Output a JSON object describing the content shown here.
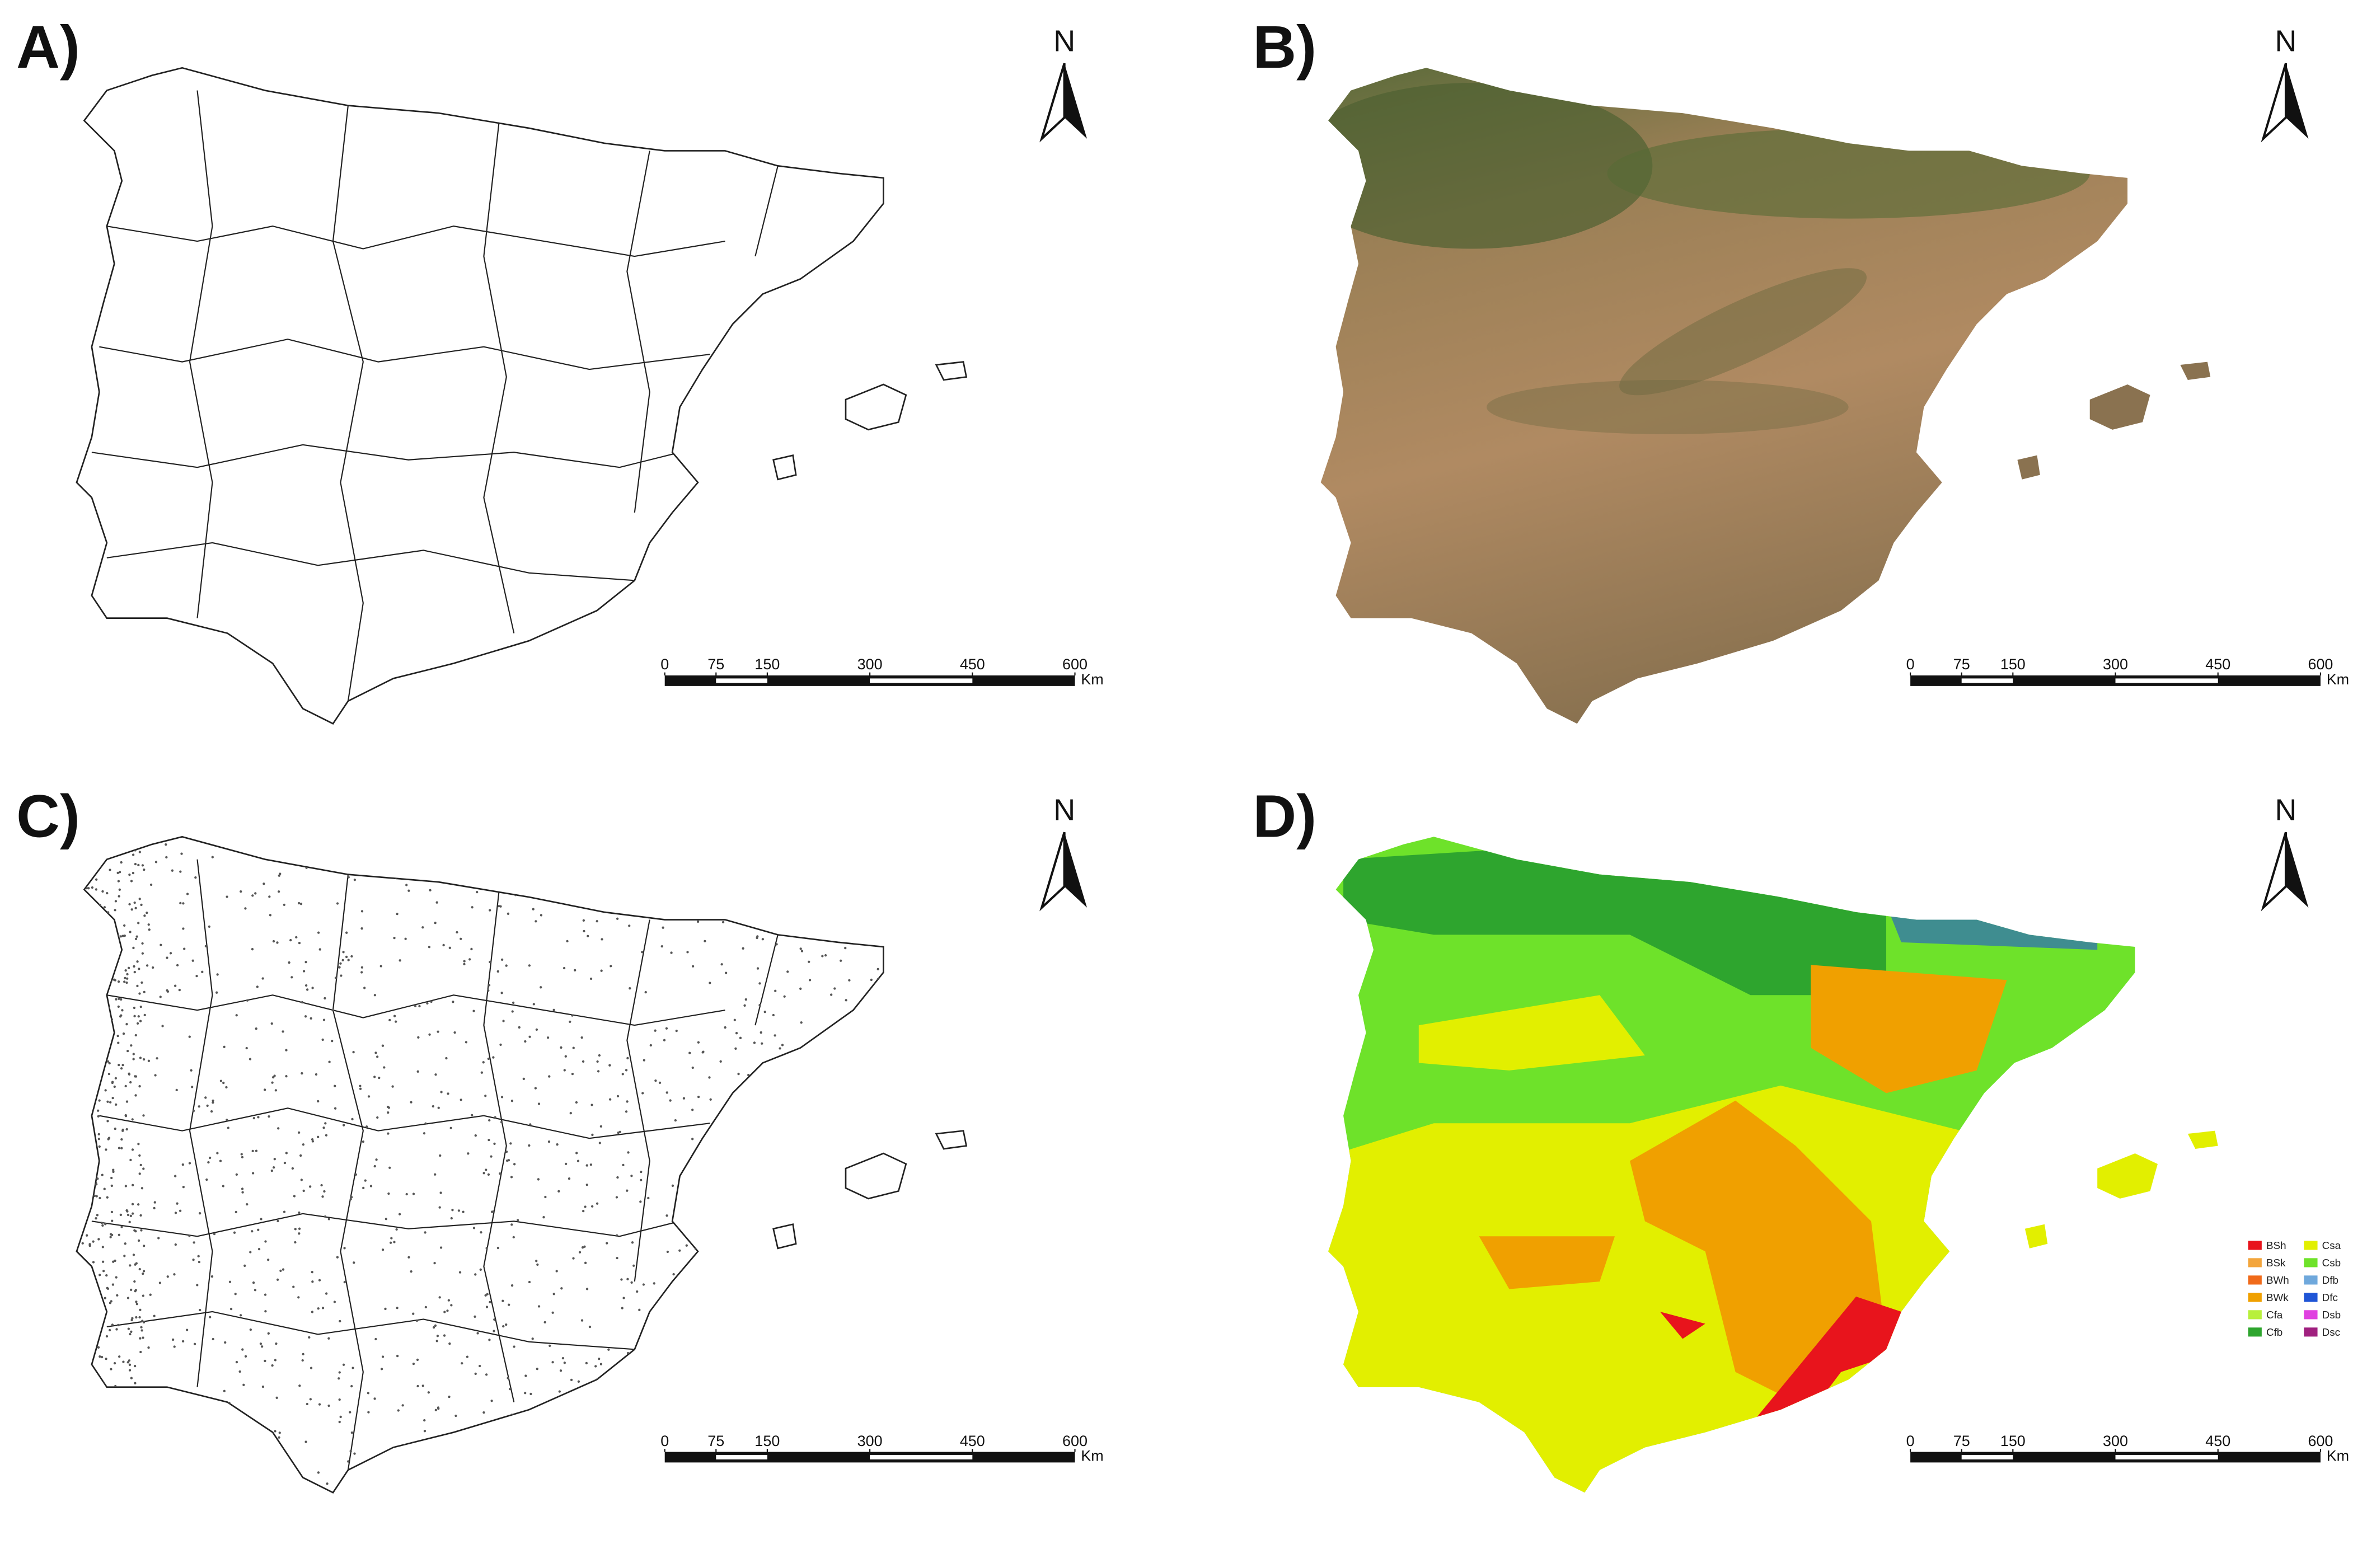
{
  "panels": [
    {
      "label": "A)",
      "north": "N",
      "scale_bar": {
        "ticks": [
          0,
          75,
          150,
          300,
          450,
          600
        ],
        "unit": "Km"
      }
    },
    {
      "label": "B)",
      "north": "N",
      "scale_bar": {
        "ticks": [
          0,
          75,
          150,
          300,
          450,
          600
        ],
        "unit": "Km"
      }
    },
    {
      "label": "C)",
      "north": "N",
      "scale_bar": {
        "ticks": [
          0,
          75,
          150,
          300,
          450,
          600
        ],
        "unit": "Km"
      }
    },
    {
      "label": "D)",
      "north": "N",
      "scale_bar": {
        "ticks": [
          0,
          75,
          150,
          300,
          450,
          600
        ],
        "unit": "Km"
      }
    }
  ],
  "legend": {
    "items": [
      {
        "code": "BSh",
        "color": "#e8141c"
      },
      {
        "code": "BSk",
        "color": "#f3a53c"
      },
      {
        "code": "BWh",
        "color": "#f06a1a"
      },
      {
        "code": "BWk",
        "color": "#f0a000"
      },
      {
        "code": "Cfa",
        "color": "#b8f03c"
      },
      {
        "code": "Cfb",
        "color": "#2ea52e"
      },
      {
        "code": "Csa",
        "color": "#e2ef00"
      },
      {
        "code": "Csb",
        "color": "#6ee22a"
      },
      {
        "code": "Dfb",
        "color": "#6fa8dc"
      },
      {
        "code": "Dfc",
        "color": "#1f55d6"
      },
      {
        "code": "Dsb",
        "color": "#e040e0"
      },
      {
        "code": "Dsc",
        "color": "#a0207f"
      }
    ]
  }
}
